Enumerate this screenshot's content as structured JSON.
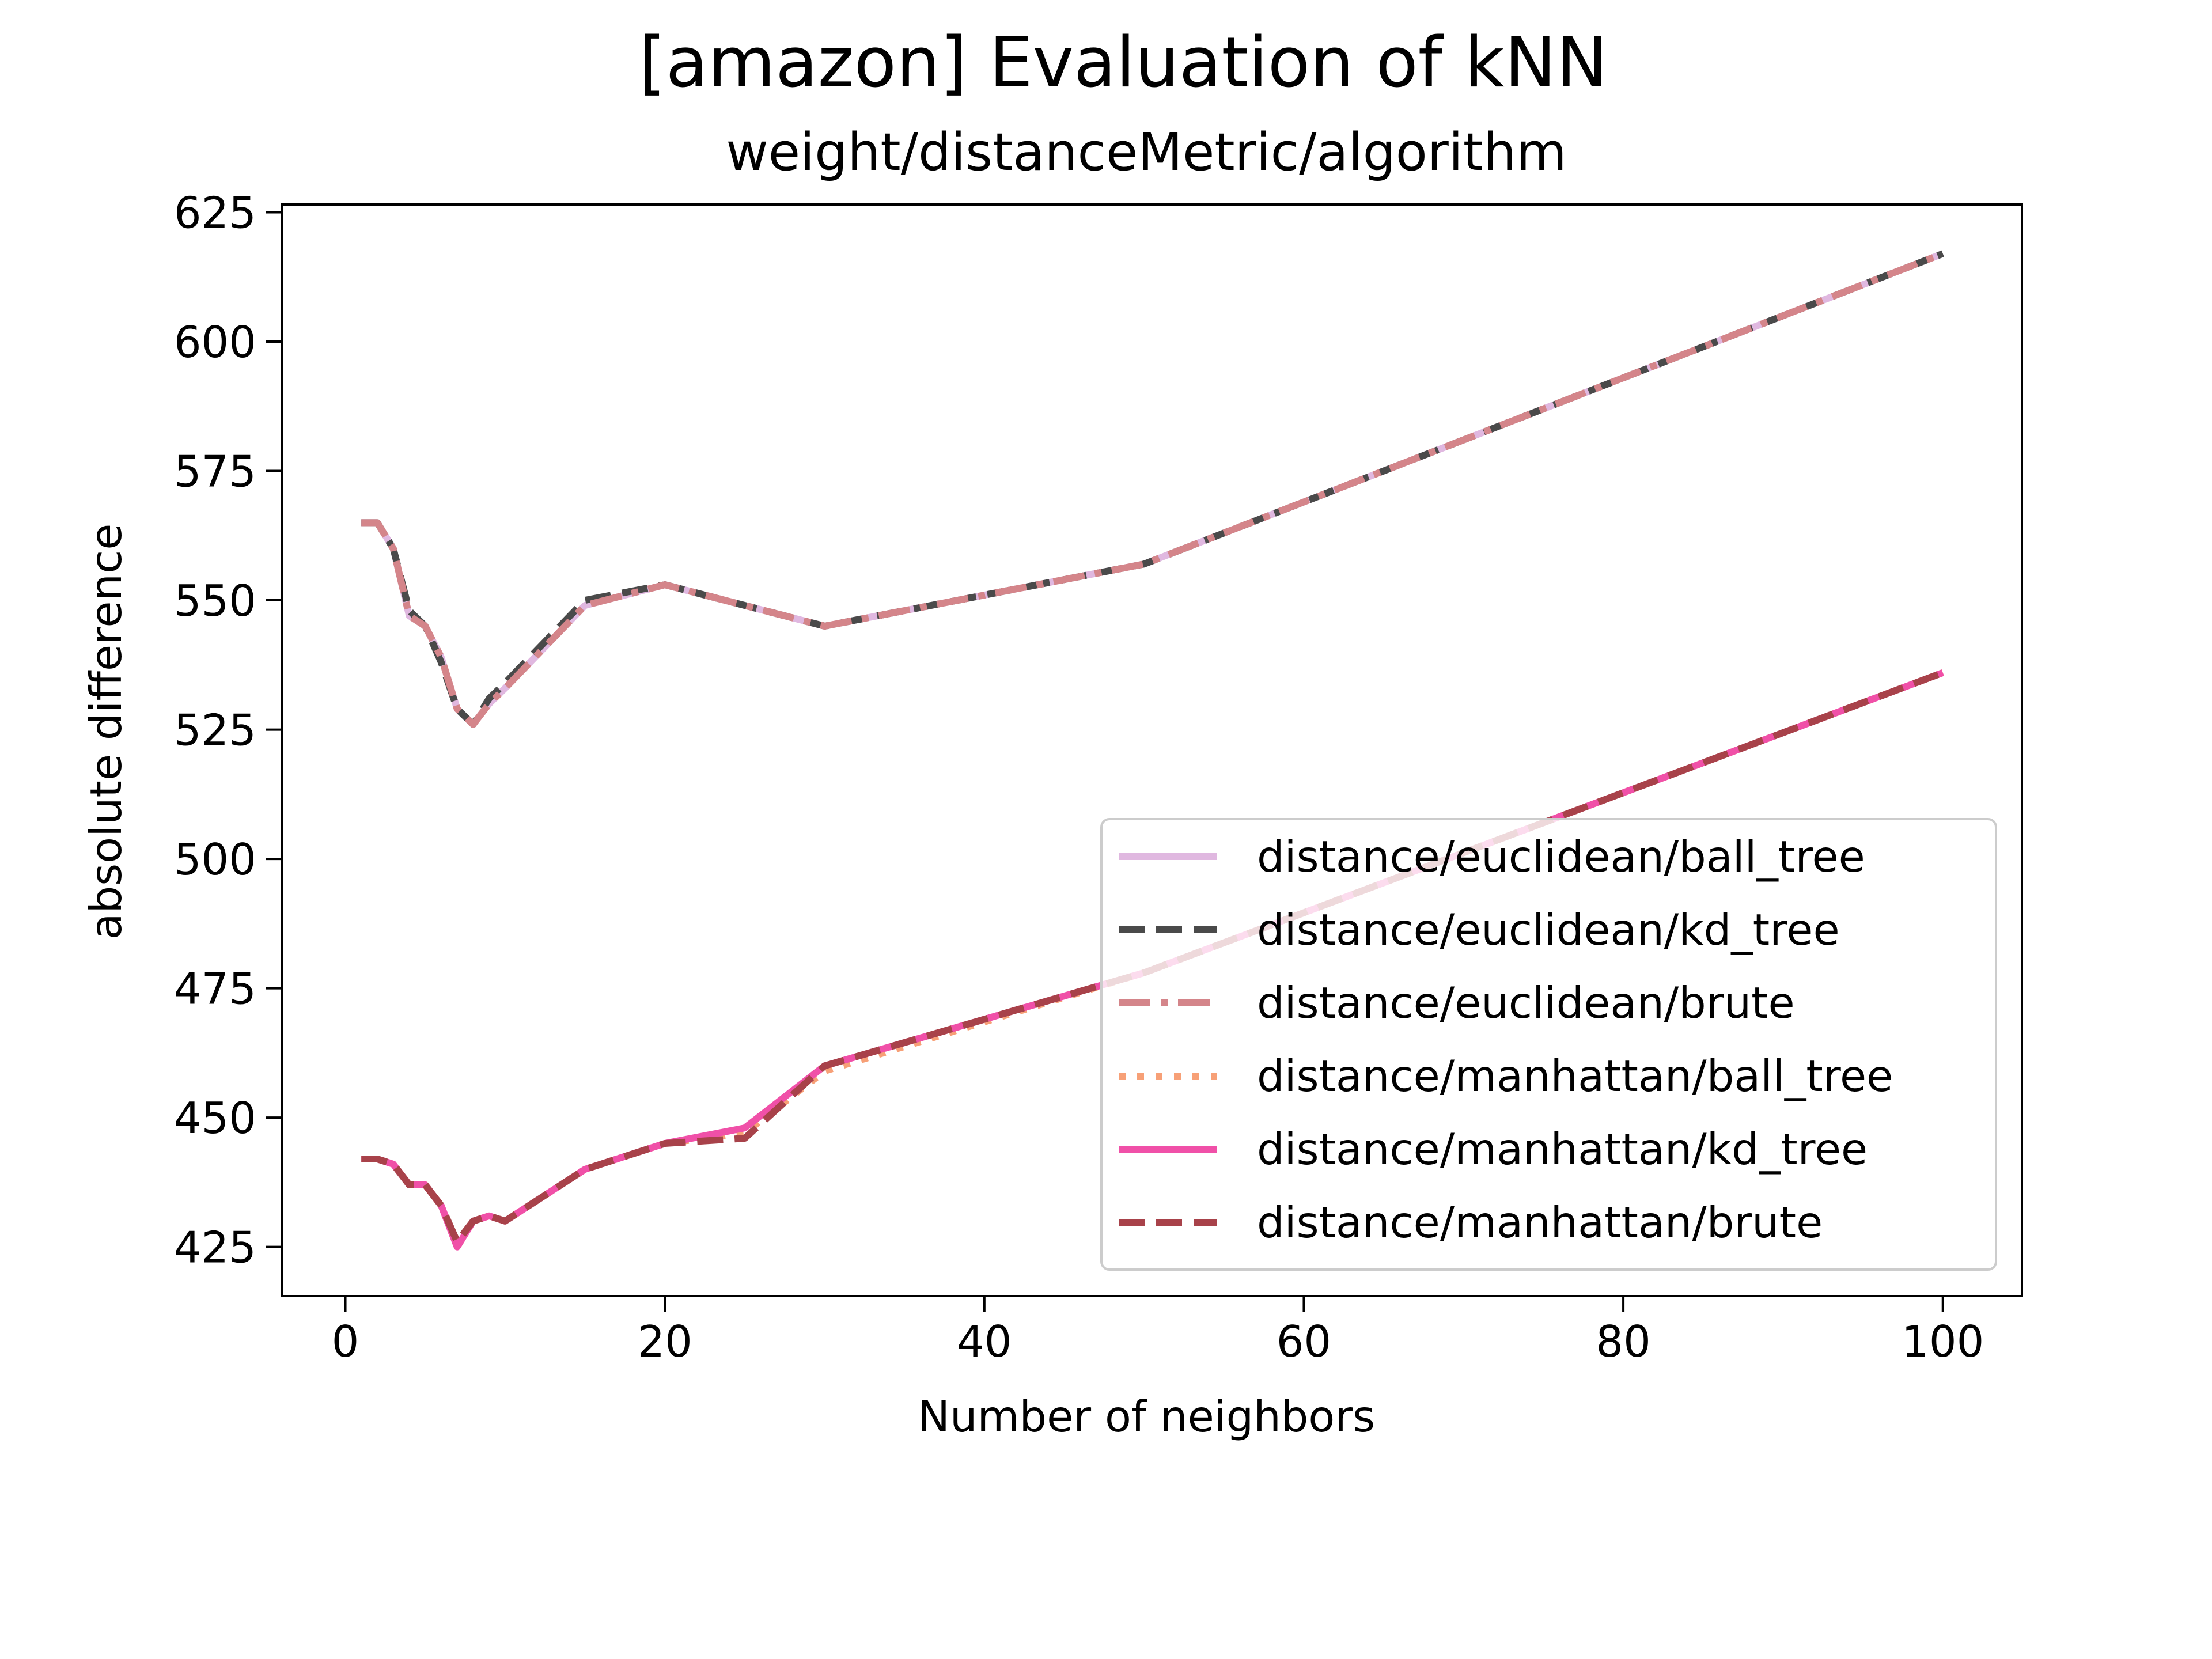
{
  "chart_data": {
    "type": "line",
    "title": "[amazon] Evaluation of kNN",
    "subtitle": "weight/distanceMetric/algorithm",
    "xlabel": "Number of neighbors",
    "ylabel": "absolute difference",
    "xlim": [
      -3.95,
      104.95
    ],
    "ylim": [
      415.5,
      626.5
    ],
    "xticks": [
      0,
      20,
      40,
      60,
      80,
      100
    ],
    "yticks": [
      425,
      450,
      475,
      500,
      525,
      550,
      575,
      600,
      625
    ],
    "legend_position": "lower-right",
    "x": [
      1,
      2,
      3,
      4,
      5,
      6,
      7,
      8,
      9,
      10,
      15,
      20,
      25,
      30,
      50,
      100
    ],
    "series": [
      {
        "name": "distance/euclidean/ball_tree",
        "color": "#e0b8e0",
        "dash": "solid",
        "width": 12,
        "values": [
          565,
          565,
          560,
          547,
          545,
          539,
          529,
          526,
          530,
          533,
          549,
          553,
          549,
          545,
          557,
          617
        ]
      },
      {
        "name": "distance/euclidean/kd_tree",
        "color": "#4a4a4a",
        "dash": "dashed",
        "width": 12,
        "values": [
          565,
          565,
          560,
          548,
          545,
          538,
          529,
          526,
          531,
          534,
          550,
          553,
          549,
          545,
          557,
          617
        ]
      },
      {
        "name": "distance/euclidean/brute",
        "color": "#d4858a",
        "dash": "dashdot",
        "width": 12,
        "values": [
          565,
          565,
          560,
          547,
          545,
          539,
          529,
          526,
          530,
          533,
          549,
          553,
          549,
          545,
          557,
          617
        ]
      },
      {
        "name": "distance/manhattan/ball_tree",
        "color": "#f7a077",
        "dash": "dotted",
        "width": 12,
        "values": [
          442,
          442,
          441,
          437,
          437,
          433,
          425,
          430,
          431,
          430,
          440,
          445,
          447,
          459,
          478,
          536
        ]
      },
      {
        "name": "distance/manhattan/kd_tree",
        "color": "#f050a8",
        "dash": "solid",
        "width": 12,
        "values": [
          442,
          442,
          441,
          437,
          437,
          433,
          425,
          430,
          431,
          430,
          440,
          445,
          448,
          460,
          478,
          536
        ]
      },
      {
        "name": "distance/manhattan/brute",
        "color": "#a8424a",
        "dash": "dashed",
        "width": 12,
        "values": [
          442,
          442,
          441,
          437,
          437,
          433,
          426,
          430,
          431,
          430,
          440,
          445,
          446,
          460,
          478,
          536
        ]
      }
    ],
    "accent_line_color": "#c0103a"
  }
}
